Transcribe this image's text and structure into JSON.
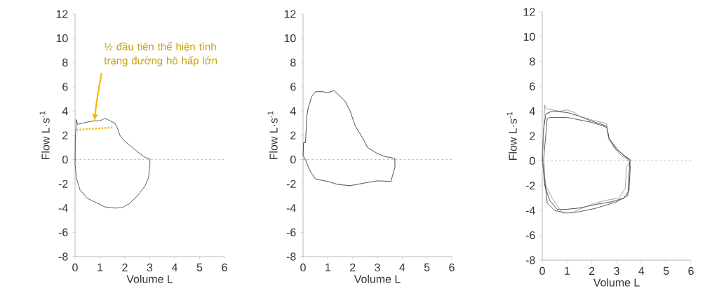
{
  "chart_data": [
    {
      "type": "line",
      "xlabel": "Volume L",
      "ylabel": "Flow L·s$^{-1}$",
      "xlim": [
        0,
        6
      ],
      "ylim": [
        -8,
        12
      ],
      "xticks": [
        0,
        1,
        2,
        3,
        4,
        5,
        6
      ],
      "yticks": [
        -8,
        -6,
        -4,
        -2,
        0,
        2,
        4,
        6,
        8,
        10,
        12
      ],
      "ref_lines": [
        {
          "axis": "y",
          "value": 0,
          "line_style": "dashed",
          "color": "#555555"
        }
      ],
      "annotations": [
        "½ đầu tiên thể hiện tình trạng đường hô hấp lớn"
      ],
      "series": [
        {
          "color": "#333333",
          "x": [
            0,
            0.01,
            0.05,
            0.1,
            0.3,
            0.5,
            0.8,
            1.0,
            1.2,
            1.4,
            1.6,
            1.7,
            1.8,
            2.0,
            2.3,
            2.6,
            2.8,
            3.0,
            3.01,
            2.95,
            2.8,
            2.5,
            2.2,
            1.9,
            1.6,
            1.2,
            0.9,
            0.5,
            0.2,
            0.05,
            0.01
          ],
          "values": [
            -0.5,
            1.6,
            3.3,
            2.9,
            3.0,
            3.1,
            3.2,
            3.2,
            3.4,
            3.2,
            3.0,
            2.6,
            2.0,
            1.5,
            1.0,
            0.5,
            0.2,
            0.05,
            -0.3,
            -1.5,
            -2.2,
            -3.0,
            -3.6,
            -3.95,
            -4.0,
            -3.9,
            -3.6,
            -3.2,
            -2.5,
            -1.5,
            -0.5
          ]
        },
        {
          "color": "#f5b800",
          "line_style": "dotted",
          "x": [
            0.05,
            1.5
          ],
          "values": [
            2.45,
            2.65
          ]
        }
      ]
    },
    {
      "type": "line",
      "xlabel": "Volume L",
      "ylabel": "Flow L·s$^{-1}$",
      "xlim": [
        0,
        6
      ],
      "ylim": [
        -8,
        12
      ],
      "xticks": [
        0,
        1,
        2,
        3,
        4,
        5,
        6
      ],
      "yticks": [
        -8,
        -6,
        -4,
        -2,
        0,
        2,
        4,
        6,
        8,
        10,
        12
      ],
      "ref_lines": [
        {
          "axis": "y",
          "value": 0,
          "line_style": "dashed",
          "color": "#555555"
        }
      ],
      "series": [
        {
          "color": "#222222",
          "x": [
            0,
            0.02,
            0.1,
            0.15,
            0.2,
            0.35,
            0.5,
            0.8,
            1.0,
            1.25,
            1.5,
            1.7,
            1.9,
            2.1,
            2.4,
            2.6,
            3.0,
            3.3,
            3.7,
            3.71,
            3.6,
            3.55,
            3.0,
            2.7,
            2.3,
            1.9,
            1.4,
            1.0,
            0.5,
            0.3,
            0.15,
            0.1,
            0.01
          ],
          "values": [
            0.3,
            1.4,
            1.4,
            3.5,
            4.2,
            5.2,
            5.6,
            5.6,
            5.5,
            5.7,
            5.2,
            4.8,
            4.0,
            2.8,
            1.8,
            1.0,
            0.5,
            0.25,
            0.1,
            -0.6,
            -1.4,
            -1.8,
            -1.75,
            -1.85,
            -2.0,
            -2.15,
            -2.05,
            -1.8,
            -1.6,
            -1.0,
            -0.3,
            0,
            0.3
          ]
        }
      ]
    },
    {
      "type": "line",
      "xlabel": "Volume L",
      "ylabel": "Flow L·s$^{-1}$",
      "xlim": [
        0,
        6
      ],
      "ylim": [
        -8,
        12
      ],
      "xticks": [
        0,
        1,
        2,
        3,
        4,
        5,
        6
      ],
      "yticks": [
        -8,
        -6,
        -4,
        -2,
        0,
        2,
        4,
        6,
        8,
        10,
        12
      ],
      "ref_lines": [
        {
          "axis": "y",
          "value": 0,
          "line_style": "dashed",
          "color": "#555555"
        }
      ],
      "series": [
        {
          "color": "#222222",
          "x": [
            0,
            0.05,
            0.15,
            0.4,
            1.0,
            1.5,
            2.0,
            2.6,
            2.7,
            3.0,
            3.3,
            3.5,
            3.55,
            3.5,
            3.3,
            2.8,
            2.2,
            1.5,
            1.0,
            0.6,
            0.3,
            0.1,
            0.01
          ],
          "values": [
            0,
            2.5,
            3.8,
            4.0,
            3.9,
            3.6,
            3.2,
            2.8,
            1.8,
            1.0,
            0.4,
            0.1,
            -0.5,
            -2.4,
            -3.0,
            -3.3,
            -3.5,
            -3.8,
            -3.9,
            -3.9,
            -3.2,
            -2.0,
            0
          ]
        },
        {
          "color": "#333333",
          "x": [
            0.05,
            0.2,
            0.3,
            1.0,
            1.5,
            2.0,
            2.6,
            2.7,
            3.0,
            3.4,
            3.55,
            3.5,
            3.45,
            3.0,
            2.2,
            1.5,
            1.0,
            0.5,
            0.2,
            0.1,
            0.06
          ],
          "values": [
            0,
            3.4,
            3.5,
            3.5,
            3.3,
            3.1,
            2.7,
            1.7,
            0.9,
            0.3,
            0.1,
            -1.0,
            -2.8,
            -3.3,
            -3.8,
            -4.1,
            -4.2,
            -4.0,
            -3.4,
            -1.5,
            0
          ]
        },
        {
          "color": "#8a8a8a",
          "x": [
            0,
            0.1,
            0.15,
            0.7,
            1.0,
            1.3,
            1.5,
            2.0,
            2.6,
            2.65,
            2.9,
            3.2,
            3.55,
            3.4,
            3.35,
            3.1,
            2.5,
            2.0,
            1.5,
            1.2,
            0.8,
            0.4,
            0.15,
            0.01
          ],
          "values": [
            0,
            4.5,
            4.2,
            4.0,
            4.1,
            3.9,
            3.6,
            3.3,
            3.0,
            2.0,
            1.0,
            0.4,
            0.0,
            -0.5,
            -2.2,
            -3.0,
            -3.2,
            -3.5,
            -3.9,
            -4.2,
            -4.2,
            -3.0,
            -2.0,
            0
          ]
        }
      ]
    }
  ]
}
